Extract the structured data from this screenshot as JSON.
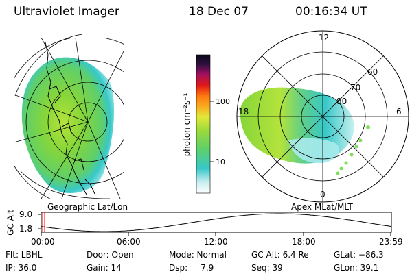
{
  "header": {
    "instrument": "Ultraviolet Imager",
    "date": "18 Dec 07",
    "time": "00:16:34 UT"
  },
  "left_map": {
    "caption": "Geographic Lat/Lon"
  },
  "right_map": {
    "caption": "Apex MLat/MLT",
    "mlt_labels": {
      "top": "12",
      "left": "18",
      "right": "6",
      "bottom": "0"
    },
    "lat_labels": [
      "60",
      "70",
      "80"
    ]
  },
  "colorbar": {
    "unit_label": "photon cm⁻²s⁻¹",
    "ticks": [
      "100",
      "10"
    ]
  },
  "altitude_plot": {
    "ylabel": "GC Alt",
    "yticks": [
      "9.0",
      "1.8"
    ],
    "xticks": [
      "00:00",
      "06:00",
      "12:00",
      "18:00",
      "23:59"
    ]
  },
  "info": {
    "filter": "Flt: LBHL",
    "ip": "IP: 36.0",
    "door": "Door: Open",
    "gain": "Gain: 14",
    "mode": "Mode: Normal",
    "dsp": "Dsp:     7.9",
    "gc_alt": "GC Alt: 6.4 Re",
    "seq": "Seq: 39",
    "glat": "GLat: −86.3",
    "glon": "GLon: 39.1"
  },
  "colors": {
    "green": "#7ed23c",
    "yellow_green": "#b4e33b",
    "cyan": "#38c8c8",
    "light_cyan": "#a8eaec",
    "marker_red": "#ff0000"
  }
}
